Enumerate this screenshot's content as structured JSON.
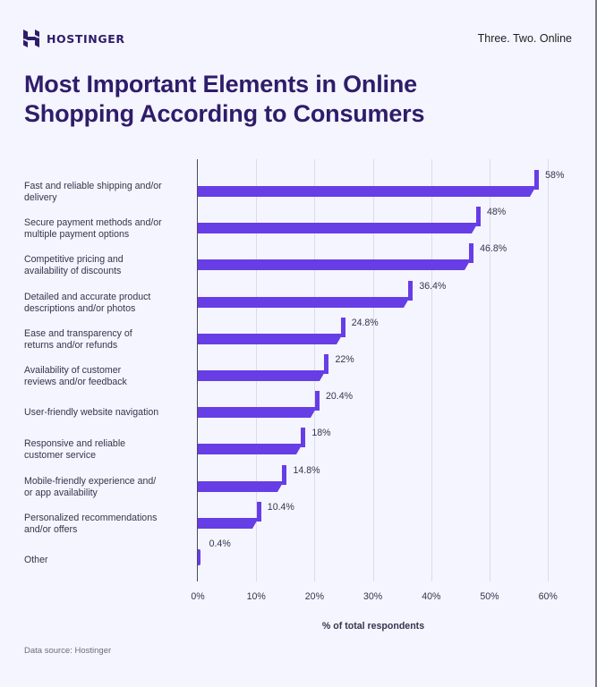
{
  "header": {
    "brand": "HOSTINGER",
    "tagline": "Three. Two. Online",
    "title_line1": "Most Important Elements in Online",
    "title_line2": "Shopping According to Consumers"
  },
  "colors": {
    "bar": "#673de6",
    "title": "#2f1c6a",
    "background": "#f4f5fe"
  },
  "chart_data": {
    "type": "bar",
    "orientation": "horizontal",
    "title": "Most Important Elements in Online Shopping According to Consumers",
    "xlabel": "% of total respondents",
    "ylabel": "",
    "xlim": [
      0,
      60
    ],
    "grid": true,
    "x_ticks": [
      "0%",
      "10%",
      "20%",
      "30%",
      "40%",
      "50%",
      "60%"
    ],
    "categories": [
      "Fast and reliable shipping and/or delivery",
      "Secure payment methods and/or multiple payment options",
      "Competitive pricing and availability of discounts",
      "Detailed and accurate product descriptions and/or photos",
      "Ease and transparency of returns and/or refunds",
      "Availability of customer reviews and/or feedback",
      "User-friendly website navigation",
      "Responsive and reliable customer service",
      "Mobile-friendly experience and/ or app availability",
      "Personalized recommendations and/or offers",
      "Other"
    ],
    "values": [
      58,
      48,
      46.8,
      36.4,
      24.8,
      22,
      20.4,
      18,
      14.8,
      10.4,
      0.4
    ],
    "value_labels": [
      "58%",
      "48%",
      "46.8%",
      "36.4%",
      "24.8%",
      "22%",
      "20.4%",
      "18%",
      "14.8%",
      "10.4%",
      "0.4%"
    ]
  },
  "labels": [
    {
      "line1": "Fast and reliable shipping and/or",
      "line2": "delivery"
    },
    {
      "line1": "Secure payment methods and/or",
      "line2": "multiple payment options"
    },
    {
      "line1": "Competitive pricing and",
      "line2": "availability of discounts"
    },
    {
      "line1": "Detailed and accurate product",
      "line2": "descriptions and/or photos"
    },
    {
      "line1": "Ease and transparency of",
      "line2": "returns and/or refunds"
    },
    {
      "line1": "Availability of customer",
      "line2": "reviews and/or feedback"
    },
    {
      "line1": "User-friendly website navigation",
      "line2": ""
    },
    {
      "line1": "Responsive and reliable",
      "line2": "customer service"
    },
    {
      "line1": "Mobile-friendly experience and/",
      "line2": "or app availability"
    },
    {
      "line1": "Personalized recommendations",
      "line2": "and/or offers"
    },
    {
      "line1": "Other",
      "line2": ""
    }
  ],
  "footer": {
    "source": "Data source: Hostinger"
  }
}
